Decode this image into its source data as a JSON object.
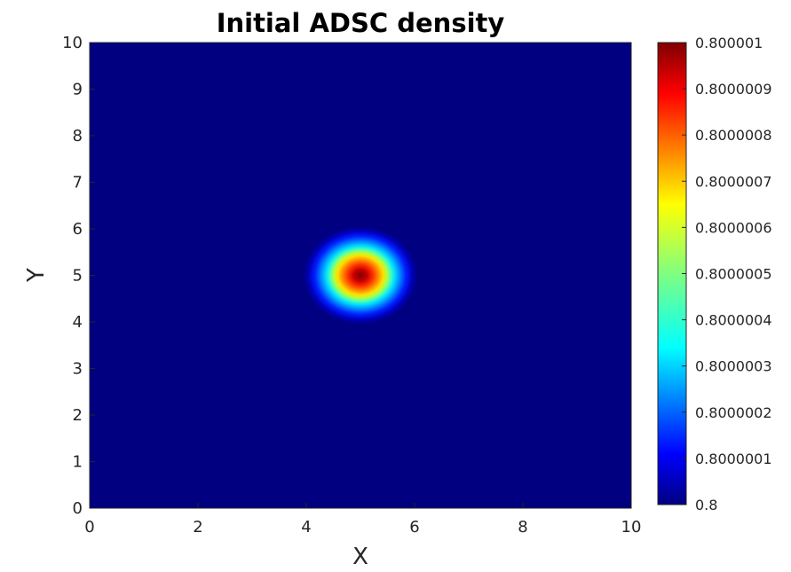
{
  "chart_data": {
    "type": "heatmap",
    "title": "Initial ADSC density",
    "xlabel": "X",
    "ylabel": "Y",
    "xlim": [
      0,
      10
    ],
    "ylim": [
      0,
      10
    ],
    "x_ticks": [
      0,
      2,
      4,
      6,
      8,
      10
    ],
    "y_ticks": [
      0,
      1,
      2,
      3,
      4,
      5,
      6,
      7,
      8,
      9,
      10
    ],
    "field": {
      "description": "Gaussian bump on a uniform background",
      "background_value": 0.8,
      "peak_value": 0.800001,
      "peak_center": [
        5,
        5
      ],
      "peak_sigma": 0.3
    },
    "colorbar": {
      "colormap": "jet",
      "min": 0.8,
      "max": 0.800001,
      "tick_labels": [
        "0.8",
        "0.8000001",
        "0.8000002",
        "0.8000003",
        "0.8000004",
        "0.8000005",
        "0.8000006",
        "0.8000007",
        "0.8000008",
        "0.8000009",
        "0.800001"
      ]
    },
    "grid": false
  }
}
